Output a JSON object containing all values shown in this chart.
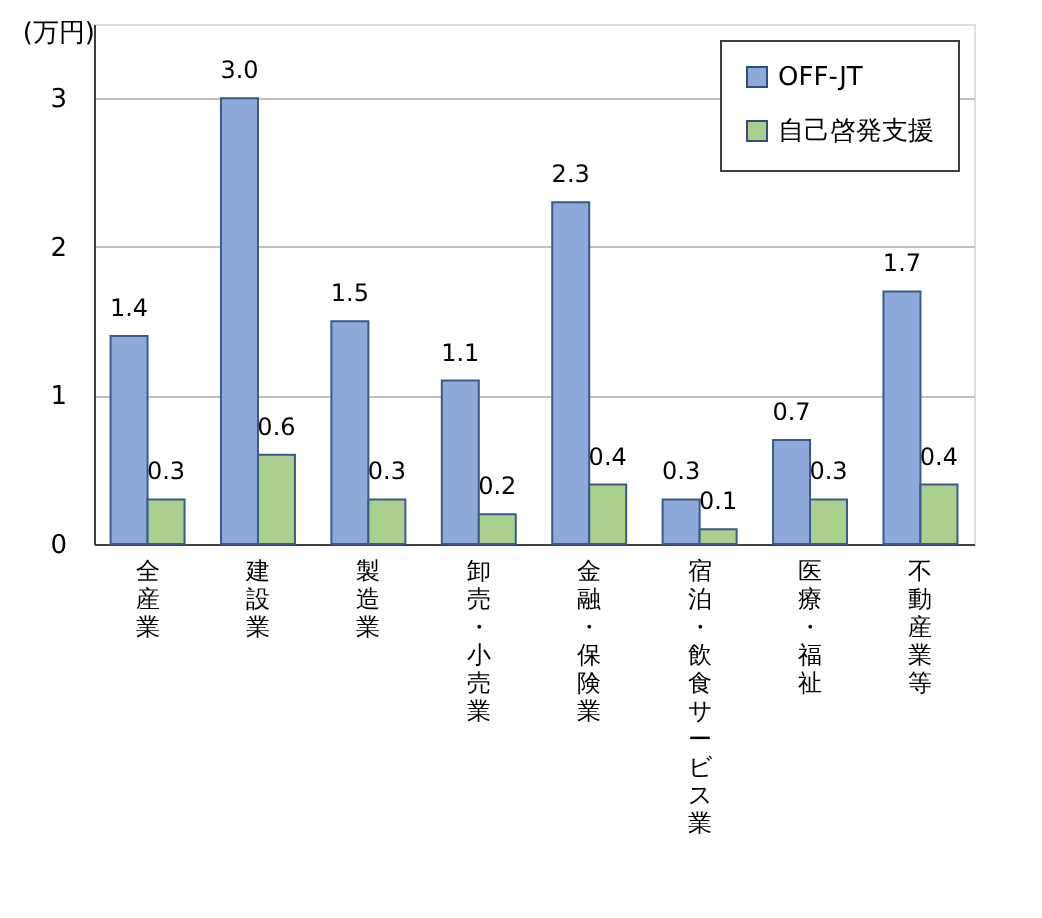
{
  "chart_data": {
    "type": "bar",
    "ylabel": "(万円)",
    "categories": [
      "全産業",
      "建設業",
      "製造業",
      "卸売・小売業",
      "金融・保険業",
      "宿泊・飲食サービス業",
      "医療・福祉",
      "不動産業等"
    ],
    "series": [
      {
        "name": "OFF-JT",
        "color": "#8eaadb",
        "values": [
          1.4,
          3.0,
          1.5,
          1.1,
          2.3,
          0.3,
          0.7,
          1.7
        ],
        "value_labels": [
          "1.4",
          "3.0",
          "1.5",
          "1.1",
          "2.3",
          "0.3",
          "0.7",
          "1.7"
        ]
      },
      {
        "name": "自己啓発支援",
        "color": "#a9d08e",
        "values": [
          0.3,
          0.6,
          0.3,
          0.2,
          0.4,
          0.1,
          0.3,
          0.4
        ],
        "value_labels": [
          "0.3",
          "0.6",
          "0.3",
          "0.2",
          "0.4",
          "0.1",
          "0.3",
          "0.4"
        ]
      }
    ],
    "ylim": [
      0,
      3.5
    ],
    "yticks": [
      0,
      1,
      2,
      3
    ],
    "grid": "y",
    "legend": "top right"
  }
}
